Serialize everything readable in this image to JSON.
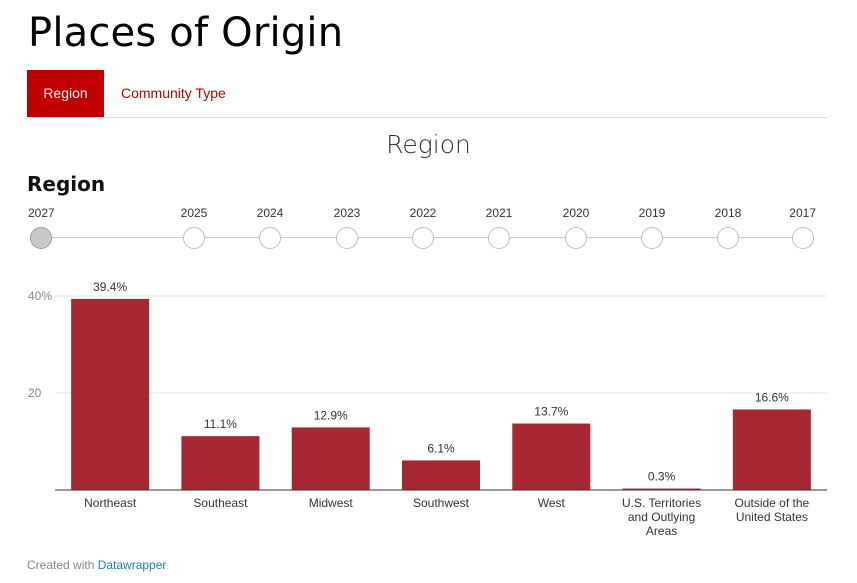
{
  "page": {
    "title": "Places of Origin"
  },
  "tabs": [
    {
      "label": "Region",
      "active": true
    },
    {
      "label": "Community Type",
      "active": false
    }
  ],
  "section_heading": "Region",
  "timeline": {
    "years": [
      "2027",
      "2025",
      "2024",
      "2023",
      "2022",
      "2021",
      "2020",
      "2019",
      "2018",
      "2017"
    ],
    "selected": "2027"
  },
  "footer": {
    "prefix": "Created with ",
    "link": "Datawrapper"
  },
  "colors": {
    "accent": "#c00000",
    "bar": "#a52832",
    "link": "#1d81a2"
  },
  "chart_data": {
    "type": "bar",
    "title": "Region",
    "categories": [
      "Northeast",
      "Southeast",
      "Midwest",
      "Southwest",
      "West",
      "U.S. Territories and Outlying Areas",
      "Outside of the United States"
    ],
    "category_lines": [
      [
        "Northeast"
      ],
      [
        "Southeast"
      ],
      [
        "Midwest"
      ],
      [
        "Southwest"
      ],
      [
        "West"
      ],
      [
        "U.S. Territories",
        "and Outlying",
        "Areas"
      ],
      [
        "Outside of the",
        "United States"
      ]
    ],
    "values": [
      39.4,
      11.1,
      12.9,
      6.1,
      13.7,
      0.3,
      16.6
    ],
    "data_labels": [
      "39.4%",
      "11.1%",
      "12.9%",
      "6.1%",
      "13.7%",
      "0.3%",
      "16.6%"
    ],
    "y_ticks": [
      20,
      40
    ],
    "y_tick_labels": [
      "20",
      "40%"
    ],
    "ylim": [
      0,
      40
    ],
    "xlabel": "",
    "ylabel": "",
    "grid": true
  }
}
